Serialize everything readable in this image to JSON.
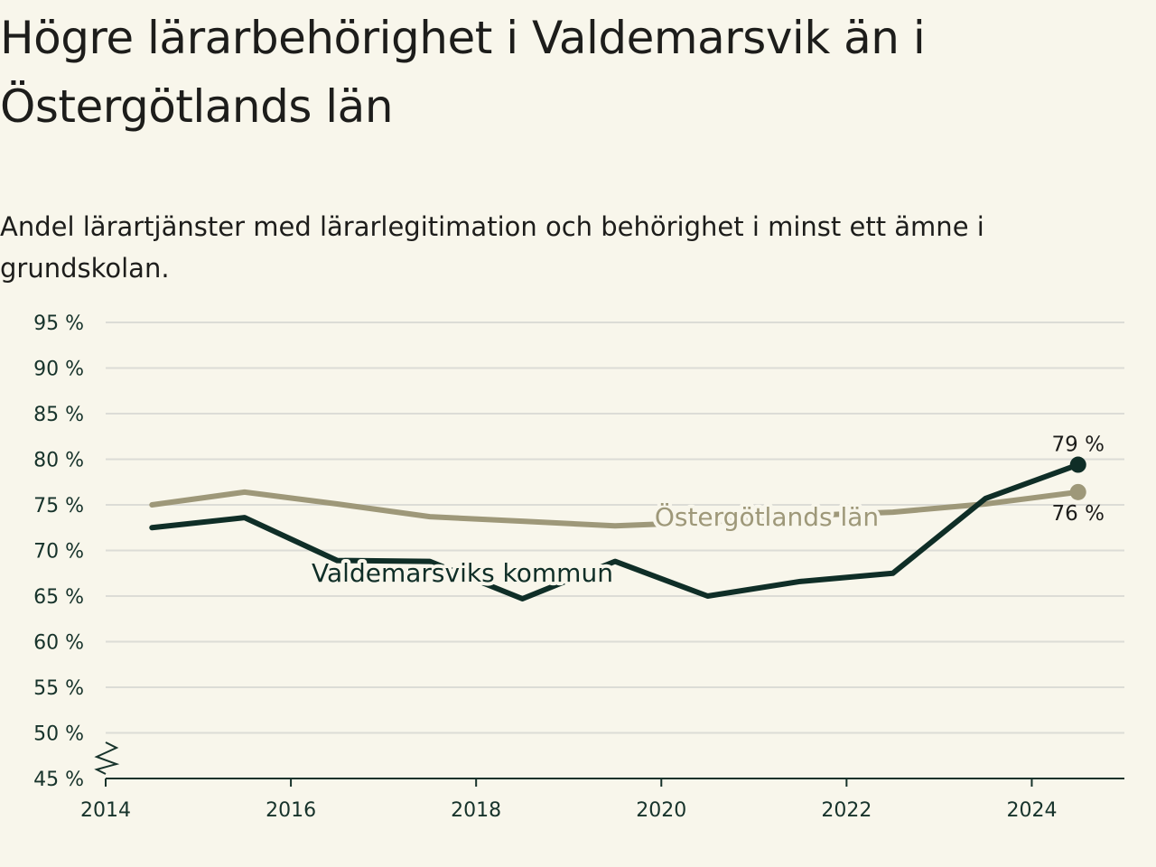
{
  "colors": {
    "background": "#f8f6eb",
    "grid": "#dcdcd6",
    "axis": "#17332b",
    "kommun": "#0f2e27",
    "lan": "#9e9879"
  },
  "chart_data": {
    "type": "line",
    "title": "Högre lärarbehörighet i Valdemarsvik än i Östergötlands län",
    "subtitle": "Andel lärartjänster med lärarlegitimation och behörighet i minst ett ämne i grundskolan.",
    "xlabel": "",
    "ylabel": "",
    "xlim": [
      2014,
      2025
    ],
    "ylim": [
      45,
      95
    ],
    "y_axis_break": true,
    "grid": "horizontal",
    "x_ticks": [
      "2014",
      "2016",
      "2018",
      "2020",
      "2022",
      "2024"
    ],
    "y_ticks": [
      {
        "value": 45,
        "label": "45 %"
      },
      {
        "value": 50,
        "label": "50 %"
      },
      {
        "value": 55,
        "label": "55 %"
      },
      {
        "value": 60,
        "label": "60 %"
      },
      {
        "value": 65,
        "label": "65 %"
      },
      {
        "value": 70,
        "label": "70 %"
      },
      {
        "value": 75,
        "label": "75 %"
      },
      {
        "value": 80,
        "label": "80 %"
      },
      {
        "value": 85,
        "label": "85 %"
      },
      {
        "value": 90,
        "label": "90 %"
      },
      {
        "value": 95,
        "label": "95 %"
      }
    ],
    "x": [
      2014.5,
      2015.5,
      2016.5,
      2017.5,
      2018.5,
      2019.5,
      2020.5,
      2021.5,
      2022.5,
      2023.5,
      2024.5
    ],
    "series": [
      {
        "name": "Östergötlands län",
        "color": "#9e9879",
        "values": [
          75.0,
          76.4,
          75.1,
          73.7,
          73.2,
          72.7,
          73.1,
          73.8,
          74.2,
          75.1,
          76.4
        ],
        "end_label": "76 %"
      },
      {
        "name": "Valdemarsviks kommun",
        "color": "#0f2e27",
        "values": [
          72.5,
          73.6,
          68.9,
          68.8,
          64.7,
          68.8,
          65.0,
          66.6,
          67.5,
          75.7,
          79.4
        ],
        "end_label": "79 %"
      }
    ]
  }
}
